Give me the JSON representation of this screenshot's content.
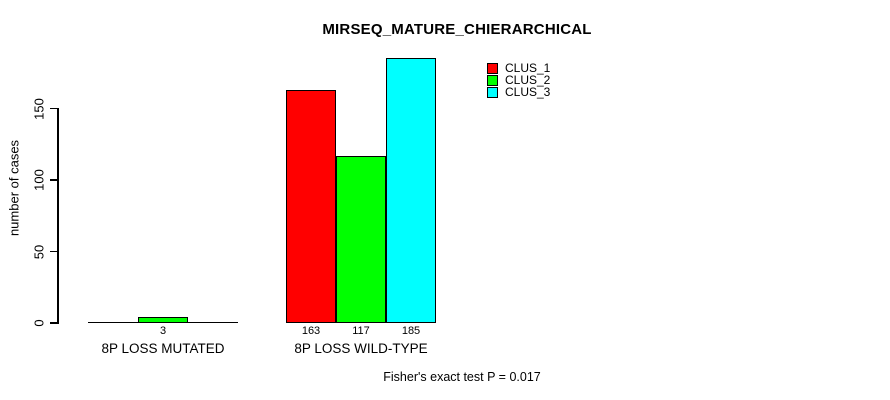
{
  "title": "MIRSEQ_MATURE_CHIERARCHICAL",
  "footer": {
    "text": "Fisher's exact test P = 0.017"
  },
  "legend": {
    "items": [
      {
        "label": "CLUS_1",
        "color": "#ff0000"
      },
      {
        "label": "CLUS_2",
        "color": "#00ff00"
      },
      {
        "label": "CLUS_3",
        "color": "#00ffff"
      }
    ]
  },
  "chart_data": {
    "type": "bar",
    "title": "MIRSEQ_MATURE_CHIERARCHICAL",
    "xlabel": "",
    "ylabel": "number of cases",
    "categories": [
      "8P LOSS MUTATED",
      "8P LOSS WILD-TYPE"
    ],
    "series": [
      {
        "name": "CLUS_1",
        "color": "#ff0000",
        "values": [
          0,
          163
        ]
      },
      {
        "name": "CLUS_2",
        "color": "#00ff00",
        "values": [
          3,
          117
        ]
      },
      {
        "name": "CLUS_3",
        "color": "#00ffff",
        "values": [
          0,
          185
        ]
      }
    ],
    "bar_value_labels": [
      [
        "",
        "3",
        ""
      ],
      [
        "163",
        "117",
        "185"
      ]
    ],
    "yticks": [
      0,
      50,
      100,
      150
    ],
    "ylim": [
      0,
      185
    ],
    "grid": false,
    "legend_position": "top-right",
    "annotation": "Fisher's exact test P = 0.017"
  }
}
